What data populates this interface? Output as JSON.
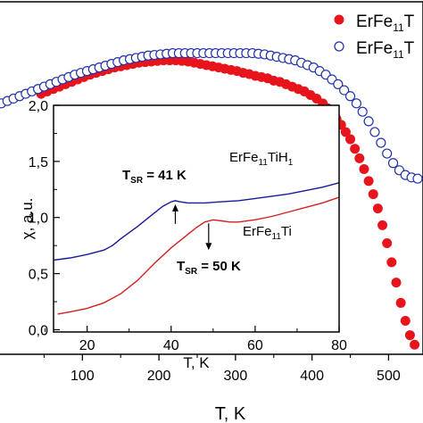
{
  "chart_data": [
    {
      "type": "scatter",
      "title": "",
      "xlabel": "T, K",
      "ylabel": "",
      "xlim": [
        -10,
        545
      ],
      "ylim": [
        0,
        2.95
      ],
      "x_ticks": [
        "100",
        "200",
        "300",
        "400",
        "500"
      ],
      "grid": false,
      "legend": "top-right",
      "legend_labels": [
        {
          "base": "ErFe",
          "sub": "11",
          "tail": "T"
        },
        {
          "base": "ErFe",
          "sub": "11",
          "tail": "T"
        }
      ],
      "series": [
        {
          "marker": "filled-circle",
          "color": "#e8141c",
          "points": [
            [
              46,
              2.18
            ],
            [
              54,
              2.2
            ],
            [
              62,
              2.22
            ],
            [
              70,
              2.24
            ],
            [
              78,
              2.26
            ],
            [
              86,
              2.28
            ],
            [
              94,
              2.3
            ],
            [
              102,
              2.32
            ],
            [
              110,
              2.34
            ],
            [
              118,
              2.355
            ],
            [
              126,
              2.37
            ],
            [
              134,
              2.385
            ],
            [
              142,
              2.4
            ],
            [
              150,
              2.41
            ],
            [
              158,
              2.42
            ],
            [
              166,
              2.43
            ],
            [
              174,
              2.44
            ],
            [
              182,
              2.445
            ],
            [
              190,
              2.45
            ],
            [
              198,
              2.455
            ],
            [
              206,
              2.46
            ],
            [
              214,
              2.46
            ],
            [
              222,
              2.46
            ],
            [
              230,
              2.455
            ],
            [
              238,
              2.45
            ],
            [
              246,
              2.44
            ],
            [
              254,
              2.43
            ],
            [
              262,
              2.42
            ],
            [
              270,
              2.41
            ],
            [
              278,
              2.4
            ],
            [
              286,
              2.39
            ],
            [
              294,
              2.38
            ],
            [
              302,
              2.37
            ],
            [
              310,
              2.355
            ],
            [
              318,
              2.345
            ],
            [
              326,
              2.33
            ],
            [
              334,
              2.32
            ],
            [
              342,
              2.31
            ],
            [
              350,
              2.29
            ],
            [
              358,
              2.28
            ],
            [
              366,
              2.26
            ],
            [
              374,
              2.24
            ],
            [
              382,
              2.22
            ],
            [
              390,
              2.2
            ],
            [
              398,
              2.17
            ],
            [
              406,
              2.14
            ],
            [
              414,
              2.1
            ],
            [
              420,
              2.06
            ],
            [
              426,
              2.02
            ],
            [
              432,
              1.97
            ],
            [
              438,
              1.92
            ],
            [
              444,
              1.86
            ],
            [
              450,
              1.8
            ],
            [
              456,
              1.72
            ],
            [
              462,
              1.64
            ],
            [
              468,
              1.55
            ],
            [
              474,
              1.45
            ],
            [
              480,
              1.34
            ],
            [
              486,
              1.22
            ],
            [
              492,
              1.08
            ],
            [
              498,
              0.93
            ],
            [
              504,
              0.77
            ],
            [
              510,
              0.6
            ],
            [
              516,
              0.43
            ],
            [
              522,
              0.28
            ],
            [
              528,
              0.16
            ],
            [
              534,
              0.08
            ]
          ]
        },
        {
          "marker": "open-circle",
          "color": "#2233aa",
          "points": [
            [
              -6,
              2.1
            ],
            [
              2,
              2.12
            ],
            [
              10,
              2.14
            ],
            [
              18,
              2.16
            ],
            [
              26,
              2.18
            ],
            [
              34,
              2.2
            ],
            [
              42,
              2.22
            ],
            [
              50,
              2.24
            ],
            [
              58,
              2.26
            ],
            [
              66,
              2.28
            ],
            [
              74,
              2.3
            ],
            [
              82,
              2.32
            ],
            [
              90,
              2.34
            ],
            [
              98,
              2.355
            ],
            [
              106,
              2.37
            ],
            [
              114,
              2.385
            ],
            [
              122,
              2.4
            ],
            [
              130,
              2.415
            ],
            [
              138,
              2.43
            ],
            [
              146,
              2.445
            ],
            [
              154,
              2.46
            ],
            [
              162,
              2.47
            ],
            [
              170,
              2.48
            ],
            [
              178,
              2.49
            ],
            [
              186,
              2.5
            ],
            [
              194,
              2.505
            ],
            [
              202,
              2.51
            ],
            [
              210,
              2.515
            ],
            [
              218,
              2.52
            ],
            [
              226,
              2.52
            ],
            [
              234,
              2.52
            ],
            [
              242,
              2.52
            ],
            [
              250,
              2.52
            ],
            [
              258,
              2.52
            ],
            [
              266,
              2.52
            ],
            [
              274,
              2.52
            ],
            [
              282,
              2.52
            ],
            [
              290,
              2.52
            ],
            [
              298,
              2.52
            ],
            [
              306,
              2.52
            ],
            [
              314,
              2.52
            ],
            [
              322,
              2.52
            ],
            [
              330,
              2.515
            ],
            [
              338,
              2.51
            ],
            [
              346,
              2.5
            ],
            [
              354,
              2.49
            ],
            [
              362,
              2.48
            ],
            [
              370,
              2.47
            ],
            [
              378,
              2.46
            ],
            [
              386,
              2.44
            ],
            [
              394,
              2.42
            ],
            [
              402,
              2.4
            ],
            [
              410,
              2.37
            ],
            [
              418,
              2.34
            ],
            [
              426,
              2.3
            ],
            [
              434,
              2.26
            ],
            [
              442,
              2.21
            ],
            [
              450,
              2.16
            ],
            [
              458,
              2.1
            ],
            [
              466,
              2.03
            ],
            [
              474,
              1.95
            ],
            [
              482,
              1.86
            ],
            [
              490,
              1.77
            ],
            [
              498,
              1.68
            ],
            [
              506,
              1.6
            ],
            [
              514,
              1.54
            ],
            [
              522,
              1.5
            ],
            [
              530,
              1.48
            ],
            [
              538,
              1.47
            ]
          ]
        }
      ]
    },
    {
      "type": "line",
      "title": "",
      "xlabel": "T, K",
      "ylabel": "χ, a.u.",
      "xlim": [
        12,
        80
      ],
      "ylim": [
        -0.02,
        2.0
      ],
      "x_ticks": [
        20,
        40,
        60,
        80
      ],
      "y_ticks": [
        "0,0",
        "0,5",
        "1,0",
        "1,5",
        "2,0"
      ],
      "y_tick_values": [
        0,
        0.5,
        1.0,
        1.5,
        2.0
      ],
      "grid": false,
      "series": [
        {
          "label": {
            "base": "ErFe",
            "sub": "11",
            "tail": "TiH",
            "sub2": "1"
          },
          "color": "#1a1a9a",
          "x": [
            12,
            16,
            20,
            24,
            26,
            28,
            32,
            36,
            38,
            40,
            41,
            42,
            44,
            48,
            52,
            56,
            60,
            64,
            68,
            72,
            76,
            80
          ],
          "y": [
            0.62,
            0.64,
            0.67,
            0.71,
            0.75,
            0.81,
            0.92,
            1.04,
            1.1,
            1.14,
            1.15,
            1.14,
            1.13,
            1.13,
            1.14,
            1.15,
            1.17,
            1.19,
            1.21,
            1.24,
            1.27,
            1.31
          ]
        },
        {
          "label": {
            "base": "ErFe",
            "sub": "11",
            "tail": "Ti"
          },
          "color": "#d42020",
          "x": [
            13,
            16,
            20,
            24,
            28,
            32,
            36,
            40,
            44,
            46,
            48,
            50,
            52,
            54,
            56,
            60,
            64,
            68,
            72,
            76,
            80
          ],
          "y": [
            0.14,
            0.16,
            0.19,
            0.24,
            0.32,
            0.44,
            0.59,
            0.73,
            0.85,
            0.91,
            0.96,
            0.98,
            0.97,
            0.96,
            0.96,
            0.98,
            1.01,
            1.05,
            1.09,
            1.13,
            1.18
          ]
        }
      ],
      "annotations": [
        {
          "prefix": "T",
          "sub": "SR",
          "text": " = 41 K",
          "x": 41,
          "y": 1.15
        },
        {
          "prefix": "T",
          "sub": "SR",
          "text": " = 50 K",
          "x": 50,
          "y": 0.98
        }
      ]
    }
  ]
}
